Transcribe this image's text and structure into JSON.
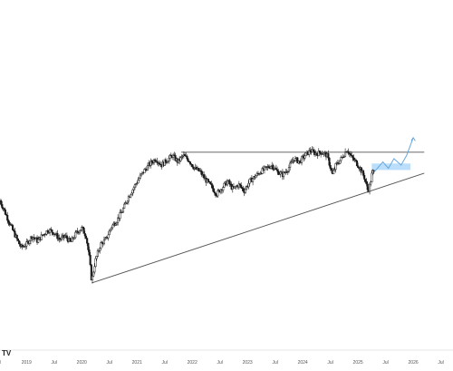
{
  "chart_data": {
    "type": "candlestick",
    "title": "",
    "xlabel": "",
    "ylabel": "",
    "grid": false,
    "legend": "none",
    "x_tick_labels": [
      "ul",
      "2019",
      "Jul",
      "2020",
      "Jul",
      "2021",
      "Jul",
      "2022",
      "Jul",
      "2023",
      "Jul",
      "2024",
      "Jul",
      "2025",
      "Jul",
      "2026",
      "Jul"
    ],
    "x_ticks_year": [
      2018.5,
      2019.0,
      2019.5,
      2020.0,
      2020.5,
      2021.0,
      2021.5,
      2022.0,
      2022.5,
      2023.0,
      2023.5,
      2024.0,
      2024.5,
      2025.0,
      2025.5,
      2026.0,
      2026.5
    ],
    "x_range_year": [
      2018.52,
      2026.72
    ],
    "y_range": [
      0,
      100
    ],
    "price_path": [
      [
        2018.52,
        60
      ],
      [
        2018.62,
        52
      ],
      [
        2018.72,
        44
      ],
      [
        2018.8,
        38
      ],
      [
        2018.9,
        31
      ],
      [
        2019.0,
        33
      ],
      [
        2019.1,
        38
      ],
      [
        2019.2,
        35
      ],
      [
        2019.3,
        39
      ],
      [
        2019.4,
        42
      ],
      [
        2019.5,
        40
      ],
      [
        2019.6,
        36
      ],
      [
        2019.7,
        38
      ],
      [
        2019.8,
        34
      ],
      [
        2019.9,
        40
      ],
      [
        2020.0,
        43
      ],
      [
        2020.08,
        38
      ],
      [
        2020.14,
        24
      ],
      [
        2020.18,
        10
      ],
      [
        2020.24,
        22
      ],
      [
        2020.34,
        33
      ],
      [
        2020.44,
        36
      ],
      [
        2020.54,
        44
      ],
      [
        2020.64,
        48
      ],
      [
        2020.74,
        54
      ],
      [
        2020.84,
        62
      ],
      [
        2020.94,
        68
      ],
      [
        2021.04,
        74
      ],
      [
        2021.14,
        79
      ],
      [
        2021.24,
        83
      ],
      [
        2021.34,
        86
      ],
      [
        2021.44,
        82
      ],
      [
        2021.54,
        85
      ],
      [
        2021.64,
        88
      ],
      [
        2021.74,
        84
      ],
      [
        2021.84,
        88
      ],
      [
        2021.94,
        85
      ],
      [
        2022.04,
        80
      ],
      [
        2022.14,
        78
      ],
      [
        2022.24,
        73
      ],
      [
        2022.34,
        69
      ],
      [
        2022.44,
        64
      ],
      [
        2022.54,
        68
      ],
      [
        2022.64,
        72
      ],
      [
        2022.74,
        67
      ],
      [
        2022.84,
        70
      ],
      [
        2022.94,
        66
      ],
      [
        2023.04,
        72
      ],
      [
        2023.14,
        75
      ],
      [
        2023.24,
        78
      ],
      [
        2023.34,
        80
      ],
      [
        2023.44,
        82
      ],
      [
        2023.54,
        78
      ],
      [
        2023.64,
        76
      ],
      [
        2023.74,
        80
      ],
      [
        2023.84,
        86
      ],
      [
        2023.94,
        84
      ],
      [
        2024.04,
        88
      ],
      [
        2024.14,
        91
      ],
      [
        2024.24,
        89
      ],
      [
        2024.34,
        90
      ],
      [
        2024.44,
        88
      ],
      [
        2024.54,
        76
      ],
      [
        2024.6,
        82
      ],
      [
        2024.7,
        86
      ],
      [
        2024.8,
        92
      ],
      [
        2024.88,
        87
      ],
      [
        2024.96,
        84
      ],
      [
        2025.04,
        80
      ],
      [
        2025.12,
        74
      ],
      [
        2025.18,
        66
      ],
      [
        2025.22,
        70
      ],
      [
        2025.26,
        78
      ],
      [
        2025.3,
        77
      ]
    ],
    "trendlines": [
      {
        "kind": "support",
        "from": [
          2020.18,
          9
        ],
        "to": [
          2026.2,
          77
        ]
      },
      {
        "kind": "resistance",
        "from": [
          2021.8,
          90
        ],
        "to": [
          2026.2,
          90
        ]
      }
    ],
    "highlight_zone": {
      "x_from": 2025.25,
      "x_to": 2025.95,
      "y_from": 79,
      "y_to": 83,
      "color": "#bbdefb"
    },
    "projection_path": [
      [
        2025.3,
        78
      ],
      [
        2025.45,
        84
      ],
      [
        2025.55,
        80
      ],
      [
        2025.65,
        86
      ],
      [
        2025.78,
        82
      ],
      [
        2025.88,
        88
      ],
      [
        2026.0,
        99
      ]
    ],
    "colors": {
      "candle": "#1a1a1a",
      "trendline": "#555555",
      "projection": "#64a8e0",
      "axis_text": "#555555",
      "axis_line": "#d0d0d0"
    },
    "watermark": "TV"
  }
}
